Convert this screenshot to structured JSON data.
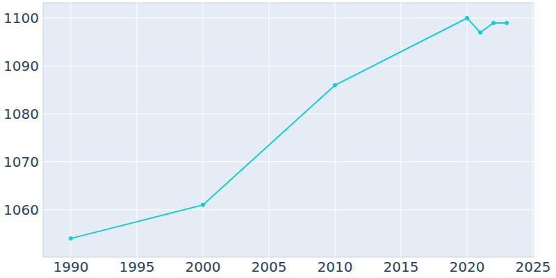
{
  "chart_data": {
    "type": "line",
    "x": [
      1990,
      2000,
      2010,
      2020,
      2021,
      2022,
      2023
    ],
    "values": [
      1054,
      1061,
      1086,
      1100,
      1097,
      1099,
      1099
    ],
    "color": "#0fcfcf",
    "marker": "circle",
    "xlim": [
      1987.9,
      2025.05
    ],
    "xticks": [
      1990,
      1995,
      2000,
      2005,
      2010,
      2015,
      2020,
      2025
    ],
    "ylim": [
      1050.1,
      1103.2
    ],
    "yticks": [
      1060,
      1070,
      1080,
      1090,
      1100
    ],
    "grid": true
  }
}
